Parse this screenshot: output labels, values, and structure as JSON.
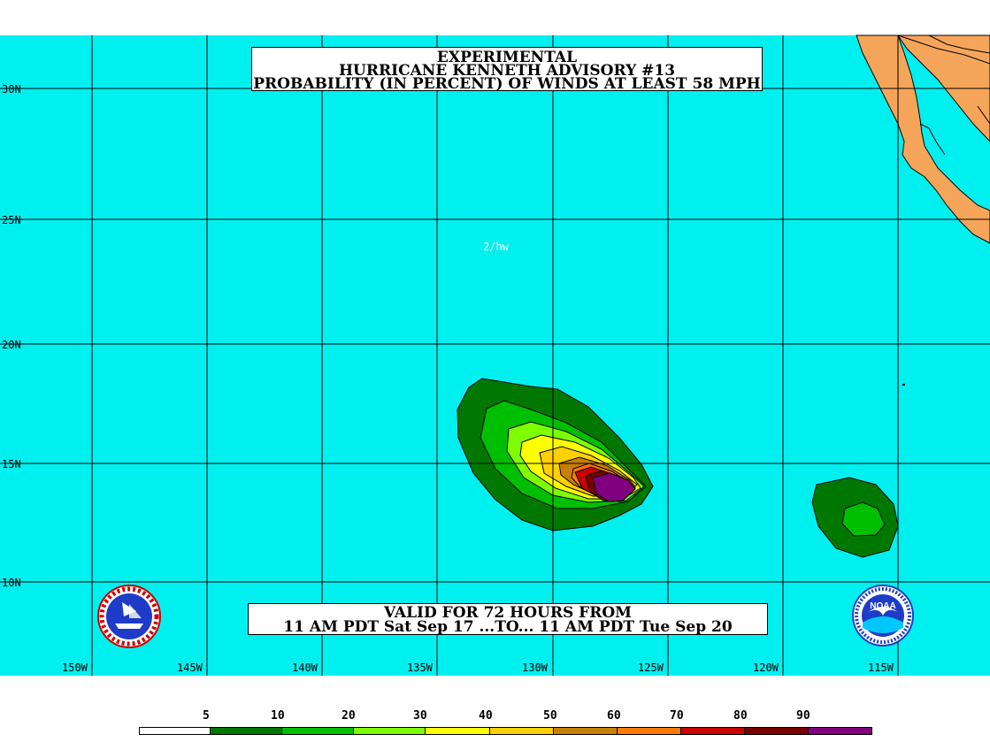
{
  "title": {
    "line1": "EXPERIMENTAL",
    "line2": "HURRICANE KENNETH ADVISORY #13",
    "line3": "PROBABILITY (IN PERCENT) OF WINDS AT LEAST 58 MPH"
  },
  "valid": {
    "line1": "VALID FOR 72 HOURS FROM",
    "line2": "11 AM PDT Sat Sep 17 ...TO... 11 AM PDT Tue Sep 20"
  },
  "credit": "2/hw",
  "latitudes": [
    "30N",
    "25N",
    "20N",
    "15N",
    "10N"
  ],
  "longitudes": [
    "150W",
    "145W",
    "140W",
    "135W",
    "130W",
    "125W",
    "120W",
    "115W"
  ],
  "legend": {
    "thresholds": [
      "5",
      "10",
      "20",
      "30",
      "40",
      "50",
      "60",
      "70",
      "80",
      "90"
    ],
    "colors": [
      "#ffffff",
      "#007800",
      "#00be00",
      "#7eff00",
      "#ffff00",
      "#ffd000",
      "#c88000",
      "#ff7a00",
      "#c80000",
      "#780000",
      "#800080"
    ]
  },
  "colors": {
    "ocean": "#00f0f0",
    "land": "#f5a55a",
    "grid": "#000000"
  },
  "logos": {
    "left": "nws-logo",
    "right": "noaa-logo",
    "right_text": "NOAA"
  }
}
